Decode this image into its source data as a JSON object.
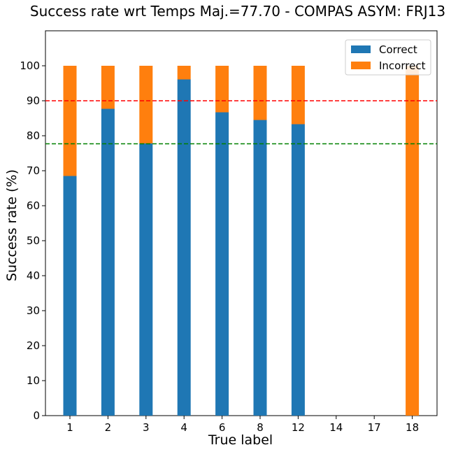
{
  "chart_data": {
    "type": "bar",
    "stacked": true,
    "title": "Success rate wrt Temps Maj.=77.70 - COMPAS ASYM:  FRJ13",
    "xlabel": "True label",
    "ylabel": "Success rate (%)",
    "ylim": [
      0,
      110
    ],
    "yticks": [
      0,
      10,
      20,
      30,
      40,
      50,
      60,
      70,
      80,
      90,
      100
    ],
    "categories": [
      "1",
      "2",
      "3",
      "4",
      "6",
      "8",
      "12",
      "14",
      "17",
      "18"
    ],
    "series": [
      {
        "name": "Correct",
        "color": "#1f77b4",
        "values": [
          68.5,
          87.7,
          77.8,
          96.1,
          86.7,
          84.5,
          83.3,
          0,
          0,
          0
        ]
      },
      {
        "name": "Incorrect",
        "color": "#ff7f0e",
        "values": [
          31.5,
          12.3,
          22.2,
          3.9,
          13.3,
          15.5,
          16.7,
          0,
          0,
          100
        ]
      }
    ],
    "reference_lines": [
      {
        "value": 90,
        "color": "#ff0000",
        "style": "dashed"
      },
      {
        "value": 77.7,
        "color": "#008000",
        "style": "dashed"
      }
    ],
    "legend_position": "top-right",
    "grid": false
  }
}
